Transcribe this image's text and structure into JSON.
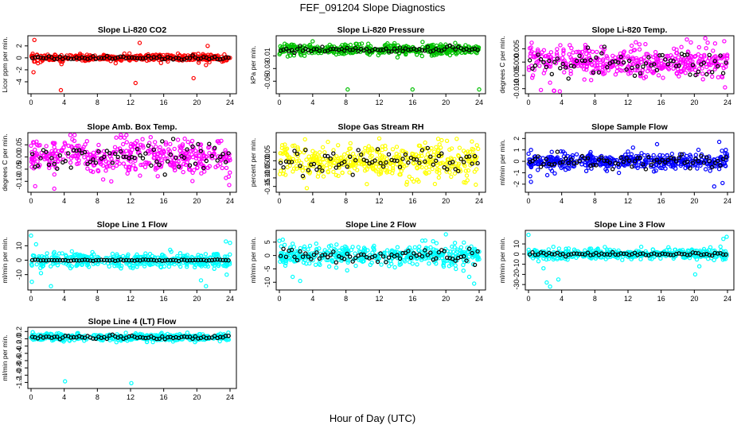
{
  "figure": {
    "title": "FEF_091204  Slope Diagnostics",
    "xlabel": "Hour of Day (UTC)"
  },
  "chart_data": [
    {
      "type": "scatter",
      "title": "Slope Li-820 CO2",
      "ylabel": "Licor ppm per min.",
      "color": "#ff0000",
      "xlim": [
        0,
        24
      ],
      "ylim": [
        -5.6,
        3.3
      ],
      "xticks": [
        0,
        4,
        8,
        12,
        16,
        20,
        24
      ],
      "yticks": [
        -4,
        -2,
        0,
        2
      ],
      "yticklabels": [
        "-4",
        "-2",
        "0",
        "2"
      ],
      "spread": 0.28,
      "black_spread": 0.15,
      "outliers": [
        [
          0.4,
          3.0
        ],
        [
          0.3,
          -2.4
        ],
        [
          0.5,
          -0.6
        ],
        [
          0.2,
          0.7
        ],
        [
          3.6,
          -5.4
        ],
        [
          12.6,
          -4.2
        ],
        [
          13.1,
          2.5
        ],
        [
          19.6,
          -3.4
        ],
        [
          21.3,
          2.0
        ],
        [
          21.1,
          -1.2
        ],
        [
          10.2,
          -0.9
        ]
      ]
    },
    {
      "type": "scatter",
      "title": "Slope Li-820 Pressure",
      "ylabel": "kPa per min.",
      "color": "#00c000",
      "xlim": [
        0,
        24
      ],
      "ylim": [
        -0.066,
        0.018
      ],
      "xticks": [
        0,
        4,
        8,
        12,
        16,
        20,
        24
      ],
      "yticks": [
        -0.05,
        -0.03,
        -0.01
      ],
      "yticklabels": [
        "-0.05",
        "-0.03",
        "-0.01"
      ],
      "center": 0,
      "spread": 0.004,
      "black_spread": 0.0025,
      "outliers": [
        [
          8.2,
          -0.063
        ],
        [
          16.0,
          -0.063
        ],
        [
          24.0,
          -0.063
        ],
        [
          4.0,
          0.013
        ],
        [
          17.2,
          0.012
        ],
        [
          1.0,
          -0.011
        ],
        [
          20.5,
          -0.009
        ]
      ]
    },
    {
      "type": "scatter",
      "title": "Slope Li-820 Temp.",
      "ylabel": "degrees C per min.",
      "color": "#ff00ff",
      "xlim": [
        0,
        24
      ],
      "ylim": [
        -0.011,
        0.009
      ],
      "xticks": [
        0,
        4,
        8,
        12,
        16,
        20,
        24
      ],
      "yticks": [
        -0.01,
        -0.005,
        0,
        0.005
      ],
      "yticklabels": [
        "-0.010",
        "-0.005",
        "0.000",
        "0.005"
      ],
      "center": 0,
      "spread": 0.003,
      "black_spread": 0.0025,
      "outliers": [
        [
          1.5,
          -0.0105
        ],
        [
          3.1,
          -0.0108
        ],
        [
          19.1,
          0.0085
        ],
        [
          22.5,
          0.007
        ],
        [
          23.7,
          -0.0095
        ]
      ]
    },
    {
      "type": "scatter",
      "title": "Slope Amb. Box Temp.",
      "ylabel": "degrees C per min.",
      "color": "#ff00ff",
      "xlim": [
        0,
        24
      ],
      "ylim": [
        -0.135,
        0.09
      ],
      "xticks": [
        0,
        4,
        8,
        12,
        16,
        20,
        24
      ],
      "yticks": [
        -0.1,
        -0.05,
        0,
        0.05
      ],
      "yticklabels": [
        "-0.10",
        "-0.05",
        "0.00",
        "0.05"
      ],
      "center": 0,
      "spread": 0.035,
      "black_spread": 0.03,
      "outliers": [
        [
          2.8,
          -0.13
        ],
        [
          10.8,
          0.08
        ],
        [
          23.9,
          -0.115
        ],
        [
          0.5,
          -0.12
        ]
      ]
    },
    {
      "type": "scatter",
      "title": "Slope Gas Stream RH",
      "ylabel": "percent per min.",
      "color": "#ffff00",
      "xlim": [
        0,
        24
      ],
      "ylim": [
        -0.17,
        0.15
      ],
      "xticks": [
        0,
        4,
        8,
        12,
        16,
        20,
        24
      ],
      "yticks": [
        -0.15,
        -0.1,
        -0.05,
        0,
        0.05
      ],
      "yticklabels": [
        "-0.15",
        "-0.10",
        "-0.05",
        "0.00",
        "0.05"
      ],
      "center": 0,
      "spread": 0.05,
      "black_spread": 0.04,
      "outliers": [
        [
          3.3,
          -0.16
        ],
        [
          12.0,
          0.13
        ],
        [
          19.5,
          0.12
        ],
        [
          23.6,
          -0.14
        ]
      ]
    },
    {
      "type": "scatter",
      "title": "Slope Sample Flow",
      "ylabel": "ml/min per min.",
      "color": "#0000ff",
      "xlim": [
        0,
        24
      ],
      "ylim": [
        -2.5,
        2.3
      ],
      "xticks": [
        0,
        4,
        8,
        12,
        16,
        20,
        24
      ],
      "yticks": [
        -2,
        -1,
        0,
        1,
        2
      ],
      "yticklabels": [
        "-2",
        "-1",
        "0",
        "1",
        "2"
      ],
      "center": 0,
      "spread": 0.35,
      "black_spread": 0.35,
      "outliers": [
        [
          0.2,
          -1.3
        ],
        [
          0.3,
          -1.8
        ],
        [
          22.4,
          -2.2
        ],
        [
          23.0,
          1.7
        ],
        [
          23.4,
          -1.9
        ],
        [
          0.3,
          1.0
        ],
        [
          12.6,
          1.2
        ],
        [
          15.5,
          1.5
        ],
        [
          23.8,
          1.0
        ]
      ]
    },
    {
      "type": "scatter",
      "title": "Slope Line 1 Flow",
      "ylabel": "ml/min per min.",
      "color": "#00ffff",
      "xlim": [
        0,
        24
      ],
      "ylim": [
        -19,
        19
      ],
      "xticks": [
        0,
        4,
        8,
        12,
        16,
        20,
        24
      ],
      "yticks": [
        -10,
        0,
        10
      ],
      "yticklabels": [
        "-10",
        "0",
        "10"
      ],
      "center": 0,
      "spread": 2.5,
      "black_spread": 0.2,
      "outliers": [
        [
          0.0,
          17
        ],
        [
          0.1,
          -15
        ],
        [
          2.4,
          -18
        ],
        [
          0.6,
          11
        ],
        [
          1.2,
          -9
        ],
        [
          20.5,
          -14
        ],
        [
          21.1,
          -18
        ],
        [
          23.6,
          -10
        ],
        [
          23.5,
          13
        ],
        [
          24.0,
          12
        ]
      ]
    },
    {
      "type": "scatter",
      "title": "Slope Line 2 Flow",
      "ylabel": "ml/min per min.",
      "color": "#00ffff",
      "xlim": [
        0,
        24
      ],
      "ylim": [
        -12,
        8.5
      ],
      "xticks": [
        0,
        4,
        8,
        12,
        16,
        20,
        24
      ],
      "yticks": [
        -10,
        -5,
        0,
        5
      ],
      "yticklabels": [
        "-10",
        "-5",
        "0",
        "5"
      ],
      "center": 0,
      "spread": 1.8,
      "black_spread": 1.2,
      "outliers": [
        [
          0.0,
          5.5
        ],
        [
          1.6,
          -8
        ],
        [
          2.5,
          -9.5
        ],
        [
          20.0,
          7.9
        ],
        [
          23.4,
          -10.5
        ],
        [
          22.8,
          -8
        ]
      ]
    },
    {
      "type": "scatter",
      "title": "Slope Line 3 Flow",
      "ylabel": "ml/min per min.",
      "color": "#00ffff",
      "xlim": [
        0,
        24
      ],
      "ylim": [
        -33,
        21
      ],
      "xticks": [
        0,
        4,
        8,
        12,
        16,
        20,
        24
      ],
      "yticks": [
        -30,
        -20,
        -10,
        0,
        10
      ],
      "yticklabels": [
        "-30",
        "-20",
        "-10",
        "0",
        "10"
      ],
      "center": 0,
      "spread": 2.5,
      "black_spread": 1.0,
      "outliers": [
        [
          0.0,
          19
        ],
        [
          2.2,
          -28
        ],
        [
          2.6,
          -32
        ],
        [
          3.6,
          -25
        ],
        [
          1.8,
          -14
        ],
        [
          20.1,
          -20
        ],
        [
          20.6,
          -12
        ],
        [
          23.5,
          15
        ],
        [
          23.9,
          17
        ],
        [
          1.2,
          -7
        ]
      ]
    },
    {
      "type": "scatter",
      "title": "Slope Line 4 (LT) Flow",
      "ylabel": "ml/min per min.",
      "color": "#00ffff",
      "xlim": [
        0,
        24
      ],
      "ylim": [
        -1.3,
        0.25
      ],
      "xticks": [
        0,
        4,
        8,
        12,
        16,
        20,
        24
      ],
      "yticks": [
        -1.2,
        -1.0,
        -0.8,
        -0.6,
        -0.4,
        -0.2,
        0,
        0.2
      ],
      "yticklabels": [
        "-1.2",
        "-1.0",
        "-0.8",
        "-0.6",
        "-0.4",
        "-0.2",
        "0.0",
        "0.2"
      ],
      "center": 0.04,
      "spread": 0.05,
      "black_spread": 0.03,
      "outliers": [
        [
          4.1,
          -1.17
        ],
        [
          12.1,
          -1.22
        ],
        [
          0.2,
          0.18
        ],
        [
          23.8,
          0.17
        ]
      ]
    }
  ]
}
